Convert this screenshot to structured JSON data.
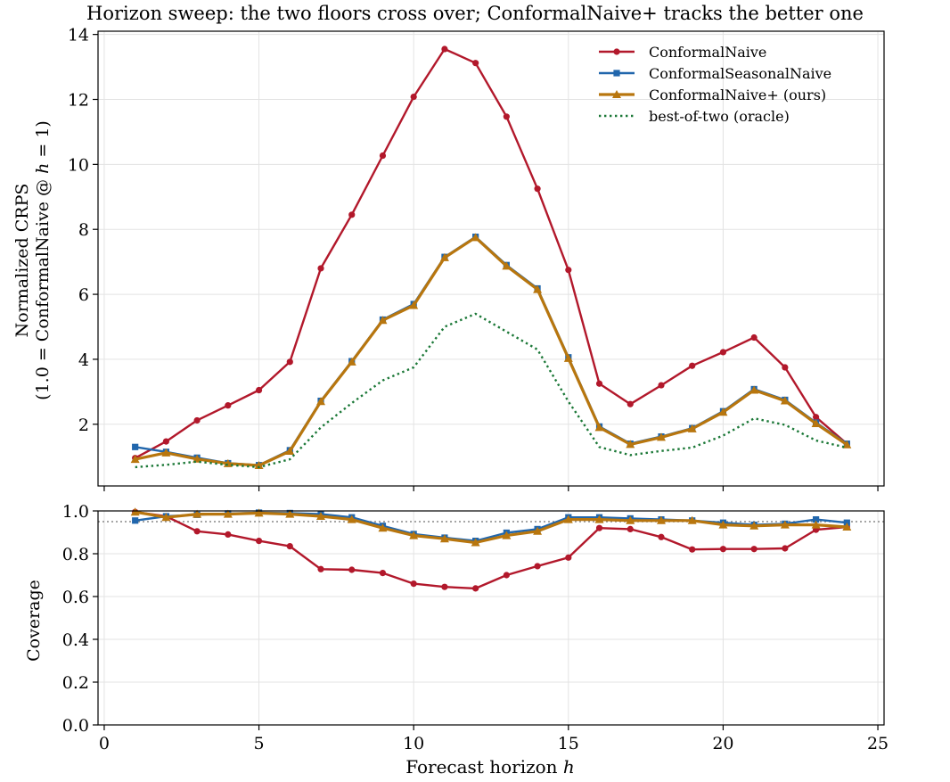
{
  "chart_data": [
    {
      "type": "line",
      "title": "Horizon sweep: the two floors cross over; ConformalNaive+ tracks the better one",
      "xlabel": "",
      "ylabel_line1": "Normalized CRPS",
      "ylabel_line2_prefix": "(1.0 = ConformalNaive @ ",
      "ylabel_line2_var": "h",
      "ylabel_line2_suffix": " = 1)",
      "xlim": [
        -0.2,
        25.2
      ],
      "ylim": [
        0.1,
        14.1
      ],
      "yticks": [
        2,
        4,
        6,
        8,
        10,
        12,
        14
      ],
      "xticks": [
        0,
        5,
        10,
        15,
        20,
        25
      ],
      "grid": true,
      "legend_position": "top-right",
      "x": [
        1,
        2,
        3,
        4,
        5,
        6,
        7,
        8,
        9,
        10,
        11,
        12,
        13,
        14,
        15,
        16,
        17,
        18,
        19,
        20,
        21,
        22,
        23,
        24
      ],
      "series": [
        {
          "name": "ConformalNaive",
          "color": "#b2182b",
          "marker": "circle",
          "style": "solid",
          "values": [
            0.96,
            1.47,
            2.12,
            2.58,
            3.05,
            3.92,
            6.8,
            8.45,
            10.27,
            12.08,
            13.55,
            13.12,
            11.47,
            9.25,
            6.75,
            3.25,
            2.62,
            3.2,
            3.8,
            4.22,
            4.67,
            3.75,
            2.22,
            1.4
          ]
        },
        {
          "name": "ConformalSeasonalNaive",
          "color": "#2166ac",
          "marker": "square",
          "style": "solid",
          "values": [
            1.3,
            1.15,
            0.97,
            0.8,
            0.74,
            1.2,
            2.72,
            3.94,
            5.22,
            5.7,
            7.15,
            7.77,
            6.9,
            6.18,
            4.06,
            1.93,
            1.4,
            1.62,
            1.88,
            2.4,
            3.08,
            2.75,
            2.05,
            1.4
          ]
        },
        {
          "name": "ConformalNaive+ (ours)",
          "color": "#b8760e",
          "marker": "triangle",
          "style": "solid",
          "values": [
            0.92,
            1.12,
            0.93,
            0.79,
            0.73,
            1.17,
            2.7,
            3.92,
            5.2,
            5.66,
            7.13,
            7.75,
            6.87,
            6.15,
            4.03,
            1.9,
            1.38,
            1.6,
            1.86,
            2.37,
            3.05,
            2.72,
            2.02,
            1.37
          ]
        },
        {
          "name": "best-of-two (oracle)",
          "color": "#1b7837",
          "marker": "none",
          "style": "dotted",
          "values": [
            0.68,
            0.75,
            0.85,
            0.75,
            0.68,
            0.92,
            1.9,
            2.65,
            3.35,
            3.75,
            5.0,
            5.4,
            4.85,
            4.3,
            2.7,
            1.3,
            1.05,
            1.18,
            1.28,
            1.65,
            2.18,
            1.98,
            1.5,
            1.28
          ]
        }
      ]
    },
    {
      "type": "line",
      "title": "",
      "xlabel_prefix": "Forecast horizon ",
      "xlabel_var": "h",
      "ylabel": "Coverage",
      "xlim": [
        -0.2,
        25.2
      ],
      "ylim": [
        0.0,
        1.0
      ],
      "yticks": [
        0.0,
        0.2,
        0.4,
        0.6,
        0.8,
        1.0
      ],
      "ytick_labels": [
        "0.0",
        "0.2",
        "0.4",
        "0.6",
        "0.8",
        "1.0"
      ],
      "xticks": [
        0,
        5,
        10,
        15,
        20,
        25
      ],
      "xtick_labels": [
        "0",
        "5",
        "10",
        "15",
        "20",
        "25"
      ],
      "grid": true,
      "reference_line": 0.95,
      "x": [
        1,
        2,
        3,
        4,
        5,
        6,
        7,
        8,
        9,
        10,
        11,
        12,
        13,
        14,
        15,
        16,
        17,
        18,
        19,
        20,
        21,
        22,
        23,
        24
      ],
      "series": [
        {
          "name": "ConformalNaive",
          "color": "#b2182b",
          "marker": "circle",
          "values": [
            0.995,
            0.975,
            0.905,
            0.89,
            0.86,
            0.835,
            0.728,
            0.725,
            0.71,
            0.66,
            0.645,
            0.638,
            0.7,
            0.742,
            0.782,
            0.92,
            0.915,
            0.878,
            0.82,
            0.822,
            0.822,
            0.825,
            0.912,
            0.925
          ]
        },
        {
          "name": "ConformalSeasonalNaive",
          "color": "#2166ac",
          "marker": "square",
          "values": [
            0.955,
            0.975,
            0.982,
            0.988,
            0.992,
            0.99,
            0.985,
            0.97,
            0.93,
            0.892,
            0.875,
            0.86,
            0.898,
            0.915,
            0.97,
            0.97,
            0.965,
            0.96,
            0.955,
            0.945,
            0.935,
            0.94,
            0.96,
            0.945
          ]
        },
        {
          "name": "ConformalNaive+ (ours)",
          "color": "#b8760e",
          "marker": "triangle",
          "values": [
            0.995,
            0.97,
            0.985,
            0.985,
            0.99,
            0.985,
            0.975,
            0.96,
            0.92,
            0.885,
            0.87,
            0.852,
            0.885,
            0.905,
            0.96,
            0.96,
            0.955,
            0.955,
            0.955,
            0.935,
            0.93,
            0.935,
            0.935,
            0.925
          ]
        }
      ]
    }
  ]
}
